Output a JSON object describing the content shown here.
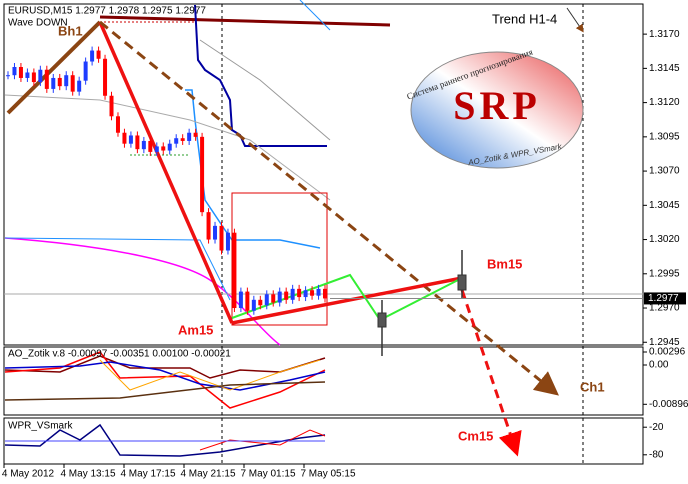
{
  "chart_data": [
    {
      "type": "candlestick",
      "title": "EURUSD,M15  1.2977 1.2978 1.2975 1.2977",
      "subtitle": "Wave DOWN",
      "values": [
        1.314,
        1.3146,
        1.3138,
        1.3142,
        1.3135,
        1.3144,
        1.313,
        1.3138,
        1.3132,
        1.314,
        1.3128,
        1.3136,
        1.315,
        1.3158,
        1.3152,
        1.3125,
        1.311,
        1.3098,
        1.309,
        1.3096,
        1.3086,
        1.3092,
        1.3084,
        1.3088,
        1.3085,
        1.309,
        1.3094,
        1.3092,
        1.3098,
        1.3095,
        1.304,
        1.302,
        1.303,
        1.3012,
        1.3025,
        1.297,
        1.2982,
        1.2968,
        1.2976,
        1.2972,
        1.298,
        1.2974,
        1.2982,
        1.2976,
        1.2984,
        1.2978,
        1.2983,
        1.2979,
        1.2984,
        1.2977
      ],
      "up_color": "#1e3cff",
      "down_color": "#ff0000",
      "last_price": 1.2977,
      "ylim": [
        1.2943,
        1.3192
      ],
      "yticks": [
        {
          "value": 1.317,
          "label": "1.3170"
        },
        1.3145,
        {
          "value": 1.312,
          "label": "1.3120"
        },
        1.3095,
        {
          "value": 1.307,
          "label": "1.3070"
        },
        1.3045,
        {
          "value": 1.302,
          "label": "1.3020"
        },
        1.2995,
        {
          "value": 1.297,
          "label": "1.2970"
        },
        1.2945
      ],
      "time_labels": [
        "4 May 2012",
        "4 May 13:15",
        "4 May 17:15",
        "4 May 21:15",
        "7 May 01:15",
        "7 May 05:15"
      ],
      "annotations": [
        "Bh1",
        "Trend H1-4",
        "Am15",
        "Bm15",
        "Cm15",
        "Ch1"
      ],
      "logo": {
        "title": "SRP",
        "arc_text": "Система раннего прогнозирования",
        "caption": "AO_Zotik & WPR_VSmark"
      }
    },
    {
      "type": "line",
      "title": "AO_Zotik v.8 -0.00097 -0.00351 0.00100 -0.00021",
      "ylim": [
        -0.0114,
        0.0041
      ],
      "yticks": [
        0.00296,
        {
          "value": 0,
          "label": "0.00"
        },
        -0.00896
      ]
    },
    {
      "type": "line",
      "title": "WPR_VSmark",
      "ylim": [
        -100,
        0
      ],
      "yticks": [
        -20,
        -80
      ]
    }
  ]
}
